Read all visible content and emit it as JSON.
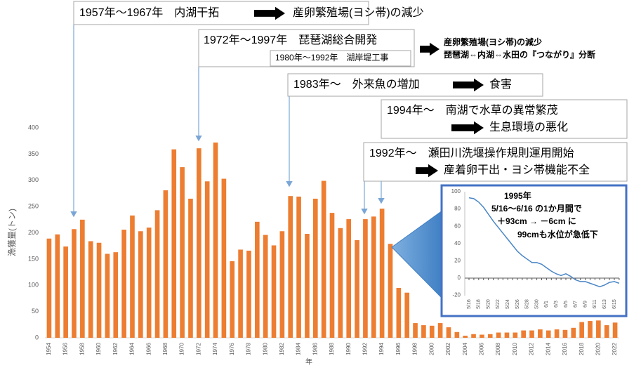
{
  "chart_data": [
    {
      "type": "bar",
      "color": "#ed7d31",
      "y_label": "漁獲量(トン)",
      "x_label": "年",
      "categories": [
        "1954",
        null,
        "1956",
        null,
        "1958",
        null,
        "1960",
        null,
        "1962",
        null,
        "1964",
        null,
        "1966",
        null,
        "1968",
        null,
        "1970",
        null,
        "1972",
        null,
        "1974",
        null,
        "1976",
        null,
        "1978",
        null,
        "1980",
        null,
        "1982",
        null,
        "1984",
        null,
        "1986",
        null,
        "1988",
        null,
        "1990",
        null,
        "1992",
        null,
        "1994",
        null,
        "1996",
        null,
        "1998",
        null,
        "2000",
        null,
        "2002",
        null,
        "2004",
        null,
        "2006",
        null,
        "2008",
        null,
        "2010",
        null,
        "2012",
        null,
        "2014",
        null,
        "2016",
        null,
        "2018",
        null,
        "2020",
        null,
        "2022"
      ],
      "values": [
        189,
        197,
        174,
        207,
        225,
        184,
        181,
        160,
        163,
        206,
        233,
        203,
        210,
        243,
        281,
        359,
        325,
        265,
        361,
        298,
        372,
        303,
        146,
        168,
        166,
        221,
        196,
        176,
        203,
        270,
        269,
        198,
        265,
        299,
        238,
        209,
        226,
        186,
        226,
        231,
        246,
        179,
        95,
        86,
        28,
        24,
        23,
        28,
        20,
        11,
        4,
        7,
        6,
        7,
        10,
        10,
        10,
        14,
        14,
        16,
        14,
        16,
        15,
        19,
        30,
        32,
        33,
        24,
        29
      ],
      "ylim": [
        0,
        400
      ],
      "yticks": [
        0,
        50,
        100,
        150,
        200,
        250,
        300,
        350,
        400
      ],
      "grid": false,
      "annotations": [
        "1957年～1967年　内湖干拓",
        "産卵繁殖場(ヨシ帯)の減少",
        "1972年～1997年　琵琶湖総合開発",
        "1980年～1992年　湖岸堤工事",
        "産卵繁殖場(ヨシ帯)の減少",
        "琵琶湖⇔内湖⇔水田の『つながり』分断",
        "1983年～　外来魚の増加",
        "食害",
        "1994年～　南湖で水草の異常繁茂",
        "生息環境の悪化",
        "1992年～　瀬田川洗堰操作規則運用開始",
        "産着卵干出・ヨシ帯機能不全"
      ]
    },
    {
      "type": "line",
      "color": "#4a86c5",
      "categories": [
        "5/16",
        null,
        "5/18",
        null,
        "5/20",
        null,
        "5/22",
        null,
        "5/24",
        null,
        "5/26",
        null,
        "5/28",
        null,
        "5/30",
        null,
        "6/1",
        null,
        "6/3",
        null,
        "6/5",
        null,
        "6/7",
        null,
        "6/9",
        null,
        "6/11",
        null,
        "6/13",
        null,
        "6/15",
        null
      ],
      "values": [
        93,
        92,
        88,
        82,
        74,
        66,
        59,
        52,
        45,
        38,
        31,
        26,
        22,
        18,
        18,
        16,
        12,
        8,
        5,
        3,
        5,
        2,
        -2,
        -4,
        -4,
        -6,
        -8,
        -10,
        -8,
        -5,
        -4,
        -6
      ],
      "ylim": [
        -20,
        100
      ],
      "yticks": [
        -20,
        0,
        20,
        40,
        60,
        80,
        100
      ],
      "annotations": [
        "1995年",
        "5/16～6/16 の1か月間で",
        "＋93cm → －6cm に",
        "99cmも水位が急低下"
      ]
    }
  ]
}
